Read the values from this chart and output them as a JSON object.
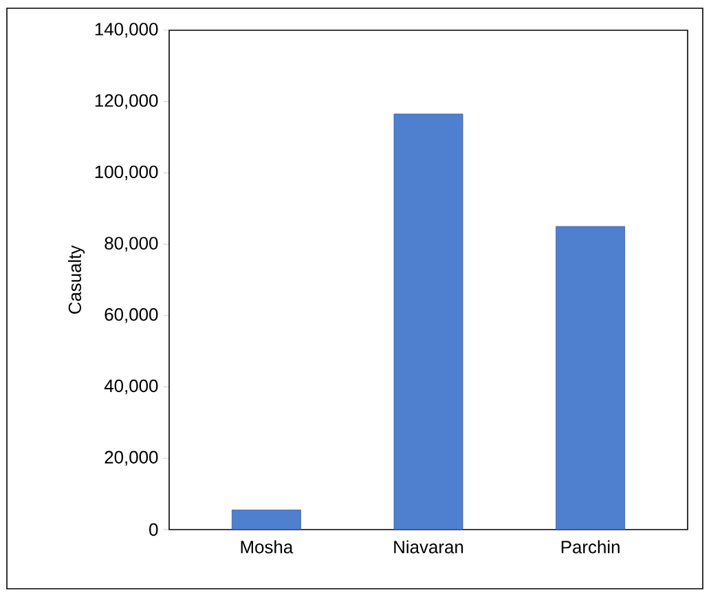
{
  "chart_data": {
    "type": "bar",
    "ylabel": "Casualty",
    "categories": [
      "Mosha",
      "Niavaran",
      "Parchin"
    ],
    "values": [
      5500,
      116500,
      85000
    ],
    "color": "#4f7fcf",
    "ylim": [
      0,
      140000
    ],
    "yticks": [
      0,
      {
        "value": 20000,
        "label": "20,000"
      },
      {
        "value": 40000,
        "label": "40,000"
      },
      {
        "value": 60000,
        "label": "60,000"
      },
      {
        "value": 80000,
        "label": "80,000"
      },
      {
        "value": 100000,
        "label": "100,000"
      },
      {
        "value": 120000,
        "label": "120,000"
      },
      {
        "value": 140000,
        "label": "140,000"
      }
    ],
    "grid": false
  }
}
